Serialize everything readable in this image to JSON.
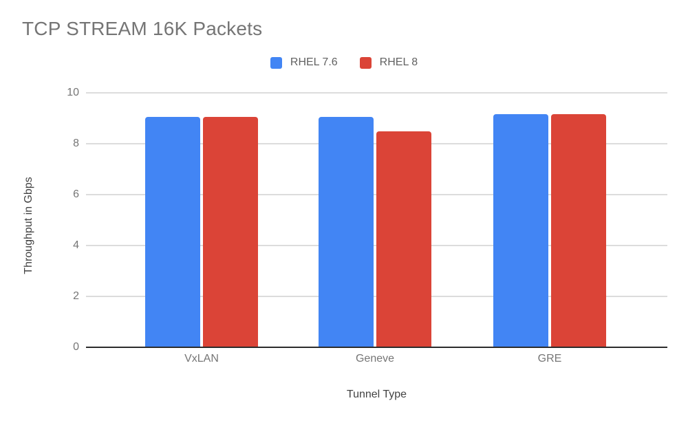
{
  "colors": {
    "background": "#ffffff",
    "title_text": "#757575",
    "tick_text": "#757575",
    "axis_title_text": "#424242",
    "legend_text": "#616161",
    "gridline": "#dcdcdc",
    "axis_baseline": "#2b2b2b",
    "series_blue": "#4285F4",
    "series_red": "#DB4437"
  },
  "header": {
    "title": "TCP STREAM 16K Packets"
  },
  "chart_data": {
    "type": "bar",
    "title": "TCP STREAM 16K Packets",
    "categories": [
      "VxLAN",
      "Geneve",
      "GRE"
    ],
    "series": [
      {
        "name": "RHEL 7.6",
        "color": "#4285F4",
        "values": [
          9.05,
          9.05,
          9.15
        ]
      },
      {
        "name": "RHEL 8",
        "color": "#DB4437",
        "values": [
          9.05,
          8.5,
          9.15
        ]
      }
    ],
    "xlabel": "Tunnel Type",
    "ylabel": "Throughput in Gbps",
    "ylim": [
      0,
      10
    ],
    "yticks": [
      0,
      2,
      4,
      6,
      8,
      10
    ],
    "grid": true,
    "legend_position": "top-center"
  }
}
